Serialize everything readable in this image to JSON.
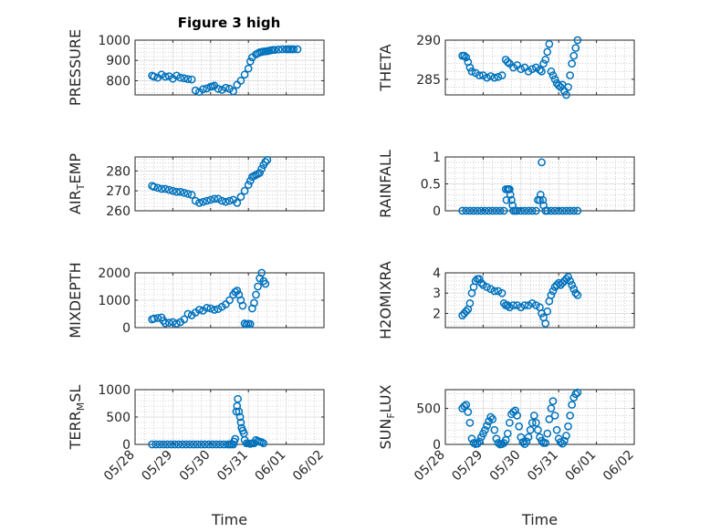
{
  "figure_title": "Figure 3 high",
  "colors": {
    "marker": "#0072BD",
    "axis": "#262626",
    "grid": "#b0b0b0"
  },
  "chart_data": [
    {
      "id": "pressure",
      "type": "scatter",
      "ylabel": "PRESSURE",
      "ylim": [
        730,
        1000
      ],
      "yticks": [
        800,
        900,
        1000
      ],
      "xlim": [
        "05/28",
        "06/02"
      ],
      "grid": "major and minor",
      "x": [
        0.45,
        0.5,
        0.6,
        0.7,
        0.8,
        0.9,
        1.0,
        1.1,
        1.2,
        1.3,
        1.4,
        1.5,
        1.6,
        1.7,
        1.8,
        1.9,
        2.0,
        2.05,
        2.1,
        2.2,
        2.3,
        2.4,
        2.5,
        2.6,
        2.7,
        2.8,
        2.9,
        3.0,
        3.05,
        3.1,
        3.2,
        3.25,
        3.3,
        3.35,
        3.4,
        3.45,
        3.5,
        3.55,
        3.6,
        3.65,
        3.7,
        3.8,
        3.9,
        4.0,
        4.05,
        4.1,
        4.15,
        4.2,
        4.3
      ],
      "y": [
        825,
        820,
        815,
        830,
        820,
        822,
        810,
        825,
        815,
        812,
        808,
        806,
        752,
        745,
        758,
        762,
        770,
        772,
        776,
        760,
        755,
        765,
        760,
        748,
        780,
        800,
        830,
        860,
        895,
        915,
        930,
        935,
        940,
        942,
        944,
        945,
        946,
        948,
        950,
        952,
        952,
        954,
        955,
        955,
        955,
        955,
        955,
        955,
        955
      ]
    },
    {
      "id": "theta",
      "type": "scatter",
      "ylabel": "THETA",
      "ylim": [
        283,
        290
      ],
      "yticks": [
        285,
        290
      ],
      "xlim": [
        "05/28",
        "06/02"
      ],
      "grid": "major and minor",
      "x": [
        0.45,
        0.5,
        0.55,
        0.6,
        0.65,
        0.7,
        0.8,
        0.9,
        1.0,
        1.1,
        1.2,
        1.3,
        1.4,
        1.5,
        1.6,
        1.65,
        1.7,
        1.8,
        1.9,
        2.0,
        2.1,
        2.2,
        2.3,
        2.4,
        2.5,
        2.55,
        2.6,
        2.65,
        2.7,
        2.75,
        2.8,
        2.85,
        2.9,
        2.95,
        3.0,
        3.05,
        3.1,
        3.15,
        3.2,
        3.25,
        3.3,
        3.35,
        3.4,
        3.45,
        3.5
      ],
      "y": [
        288,
        288,
        287.8,
        287.2,
        286.5,
        286,
        285.8,
        285.5,
        285.5,
        285.2,
        285.4,
        285.2,
        285.3,
        285.5,
        287.5,
        287.2,
        287,
        286.5,
        286.8,
        286.3,
        286.5,
        286,
        286.3,
        286.5,
        286.2,
        286,
        287,
        287.5,
        288.5,
        289.5,
        286,
        285.5,
        285,
        284.5,
        284.2,
        284,
        284.3,
        283.5,
        283,
        284,
        285.5,
        287,
        288,
        289,
        290
      ]
    },
    {
      "id": "air-temp",
      "type": "scatter",
      "ylabel": "AIR_TEMP",
      "ylim": [
        260,
        287
      ],
      "yticks": [
        260,
        270,
        280
      ],
      "xlim": [
        "05/28",
        "06/02"
      ],
      "grid": "major and minor",
      "x": [
        0.45,
        0.5,
        0.6,
        0.7,
        0.8,
        0.9,
        1.0,
        1.1,
        1.2,
        1.3,
        1.4,
        1.5,
        1.6,
        1.7,
        1.8,
        1.9,
        2.0,
        2.1,
        2.2,
        2.3,
        2.4,
        2.5,
        2.6,
        2.7,
        2.8,
        2.9,
        3.0,
        3.05,
        3.1,
        3.15,
        3.2,
        3.25,
        3.3,
        3.35,
        3.4,
        3.45,
        3.5
      ],
      "y": [
        272.5,
        272,
        271.5,
        271,
        271,
        270.5,
        270,
        269.5,
        269.5,
        269,
        268.5,
        268,
        265,
        264,
        264.5,
        265,
        265.5,
        266,
        266,
        265,
        264.5,
        265,
        265.5,
        264,
        267,
        270,
        273,
        275,
        277,
        277.5,
        278,
        278.5,
        279,
        281,
        283,
        284.5,
        285.5
      ]
    },
    {
      "id": "rainfall",
      "type": "scatter",
      "ylabel": "RAINFALL",
      "ylim": [
        0,
        1
      ],
      "yticks": [
        0,
        0.5,
        1
      ],
      "xlim": [
        "05/28",
        "06/02"
      ],
      "grid": "major and minor",
      "x": [
        0.45,
        0.55,
        0.65,
        0.75,
        0.85,
        0.95,
        1.05,
        1.15,
        1.25,
        1.35,
        1.45,
        1.55,
        1.6,
        1.62,
        1.65,
        1.68,
        1.7,
        1.72,
        1.75,
        1.78,
        1.8,
        1.85,
        1.9,
        2.0,
        2.1,
        2.2,
        2.3,
        2.4,
        2.45,
        2.5,
        2.52,
        2.55,
        2.58,
        2.6,
        2.65,
        2.7,
        2.8,
        2.9,
        3.0,
        3.1,
        3.2,
        3.3,
        3.4,
        3.5
      ],
      "y": [
        0,
        0,
        0,
        0,
        0,
        0,
        0,
        0,
        0,
        0,
        0,
        0,
        0.4,
        0.2,
        0.4,
        0.4,
        0.4,
        0.3,
        0.2,
        0.1,
        0,
        0,
        0,
        0,
        0,
        0,
        0,
        0,
        0.2,
        0.2,
        0.3,
        0.9,
        0.2,
        0.1,
        0,
        0,
        0,
        0,
        0,
        0,
        0,
        0,
        0,
        0
      ]
    },
    {
      "id": "mixdepth",
      "type": "scatter",
      "ylabel": "MIXDEPTH",
      "ylim": [
        0,
        2000
      ],
      "yticks": [
        0,
        1000,
        2000
      ],
      "xlim": [
        "05/28",
        "06/02"
      ],
      "grid": "major and minor",
      "x": [
        0.45,
        0.5,
        0.6,
        0.7,
        0.75,
        0.8,
        0.9,
        1.0,
        1.1,
        1.2,
        1.3,
        1.4,
        1.5,
        1.6,
        1.7,
        1.8,
        1.9,
        2.0,
        2.1,
        2.2,
        2.3,
        2.4,
        2.5,
        2.6,
        2.65,
        2.7,
        2.75,
        2.8,
        2.85,
        2.9,
        2.95,
        3.0,
        3.05,
        3.1,
        3.15,
        3.2,
        3.25,
        3.3,
        3.35,
        3.4,
        3.45
      ],
      "y": [
        300,
        330,
        350,
        370,
        250,
        160,
        180,
        200,
        150,
        200,
        300,
        500,
        450,
        550,
        650,
        620,
        720,
        700,
        650,
        680,
        760,
        850,
        1000,
        1200,
        1300,
        1350,
        1200,
        1000,
        800,
        150,
        120,
        140,
        130,
        700,
        900,
        1200,
        1500,
        1800,
        2000,
        1700,
        1600
      ]
    },
    {
      "id": "h2omixra",
      "type": "scatter",
      "ylabel": "H2OMIXRA",
      "ylim": [
        1.3,
        4
      ],
      "yticks": [
        2,
        3,
        4
      ],
      "xlim": [
        "05/28",
        "06/02"
      ],
      "grid": "major and minor",
      "x": [
        0.45,
        0.5,
        0.55,
        0.6,
        0.65,
        0.7,
        0.75,
        0.8,
        0.85,
        0.9,
        0.95,
        1.0,
        1.1,
        1.2,
        1.3,
        1.4,
        1.5,
        1.55,
        1.6,
        1.65,
        1.7,
        1.8,
        1.9,
        2.0,
        2.1,
        2.2,
        2.3,
        2.4,
        2.5,
        2.55,
        2.6,
        2.65,
        2.7,
        2.75,
        2.8,
        2.85,
        2.9,
        2.95,
        3.0,
        3.05,
        3.1,
        3.15,
        3.2,
        3.25,
        3.3,
        3.35,
        3.4,
        3.45,
        3.5
      ],
      "y": [
        1.9,
        2,
        2.1,
        2.2,
        2.5,
        3,
        3.3,
        3.6,
        3.7,
        3.7,
        3.5,
        3.4,
        3.3,
        3.2,
        3.1,
        3.1,
        3,
        2.5,
        2.4,
        2.4,
        2.3,
        2.4,
        2.4,
        2.3,
        2.4,
        2.4,
        2.5,
        2.4,
        2.3,
        2,
        1.8,
        1.5,
        2.1,
        2.6,
        2.9,
        3.1,
        3.3,
        3.4,
        3.5,
        3.4,
        3.5,
        3.6,
        3.7,
        3.8,
        3.6,
        3.4,
        3.2,
        3,
        2.9
      ]
    },
    {
      "id": "terr-msl",
      "type": "scatter",
      "ylabel": "TERR_MSL",
      "ylim": [
        0,
        1000
      ],
      "yticks": [
        0,
        500,
        1000
      ],
      "xlim": [
        "05/28",
        "06/02"
      ],
      "grid": "major and minor",
      "x": [
        0.45,
        0.55,
        0.65,
        0.75,
        0.85,
        0.95,
        1.05,
        1.15,
        1.25,
        1.35,
        1.45,
        1.55,
        1.65,
        1.75,
        1.85,
        1.95,
        2.05,
        2.15,
        2.25,
        2.35,
        2.45,
        2.5,
        2.55,
        2.6,
        2.62,
        2.65,
        2.68,
        2.7,
        2.72,
        2.75,
        2.78,
        2.8,
        2.82,
        2.85,
        2.88,
        2.9,
        2.95,
        3.0,
        3.05,
        3.1,
        3.15,
        3.2,
        3.25,
        3.3,
        3.35,
        3.4
      ],
      "y": [
        0,
        0,
        0,
        0,
        0,
        0,
        0,
        0,
        0,
        0,
        0,
        0,
        0,
        0,
        0,
        0,
        0,
        0,
        0,
        0,
        0,
        0,
        0,
        0,
        50,
        100,
        600,
        700,
        830,
        600,
        500,
        400,
        300,
        250,
        200,
        80,
        20,
        20,
        10,
        20,
        20,
        80,
        60,
        50,
        40,
        20
      ]
    },
    {
      "id": "sunflux",
      "type": "scatter",
      "ylabel": "SUN_FLUX",
      "ylim": [
        0,
        760
      ],
      "yticks": [
        0,
        500
      ],
      "xlim": [
        "05/28",
        "06/02"
      ],
      "grid": "major and minor",
      "xticks": [
        "05/28",
        "05/29",
        "05/30",
        "05/31",
        "06/01",
        "06/02"
      ],
      "xlabel": "Time",
      "x": [
        0.45,
        0.5,
        0.55,
        0.6,
        0.65,
        0.7,
        0.75,
        0.8,
        0.85,
        0.9,
        0.95,
        1.0,
        1.05,
        1.1,
        1.15,
        1.2,
        1.25,
        1.3,
        1.35,
        1.4,
        1.45,
        1.5,
        1.55,
        1.6,
        1.65,
        1.7,
        1.75,
        1.8,
        1.85,
        1.9,
        1.95,
        2.0,
        2.05,
        2.1,
        2.15,
        2.2,
        2.25,
        2.3,
        2.35,
        2.4,
        2.45,
        2.5,
        2.55,
        2.6,
        2.65,
        2.7,
        2.75,
        2.8,
        2.85,
        2.9,
        2.95,
        3.0,
        3.05,
        3.1,
        3.15,
        3.2,
        3.25,
        3.3,
        3.35,
        3.4,
        3.45,
        3.5
      ],
      "y": [
        500,
        530,
        550,
        450,
        300,
        80,
        20,
        5,
        10,
        40,
        100,
        150,
        200,
        260,
        320,
        380,
        350,
        200,
        80,
        20,
        0,
        5,
        20,
        60,
        150,
        300,
        420,
        450,
        470,
        400,
        250,
        100,
        30,
        5,
        40,
        100,
        200,
        300,
        400,
        300,
        200,
        100,
        50,
        20,
        20,
        150,
        350,
        500,
        600,
        400,
        200,
        80,
        30,
        10,
        50,
        120,
        250,
        400,
        550,
        650,
        700,
        720
      ]
    }
  ]
}
